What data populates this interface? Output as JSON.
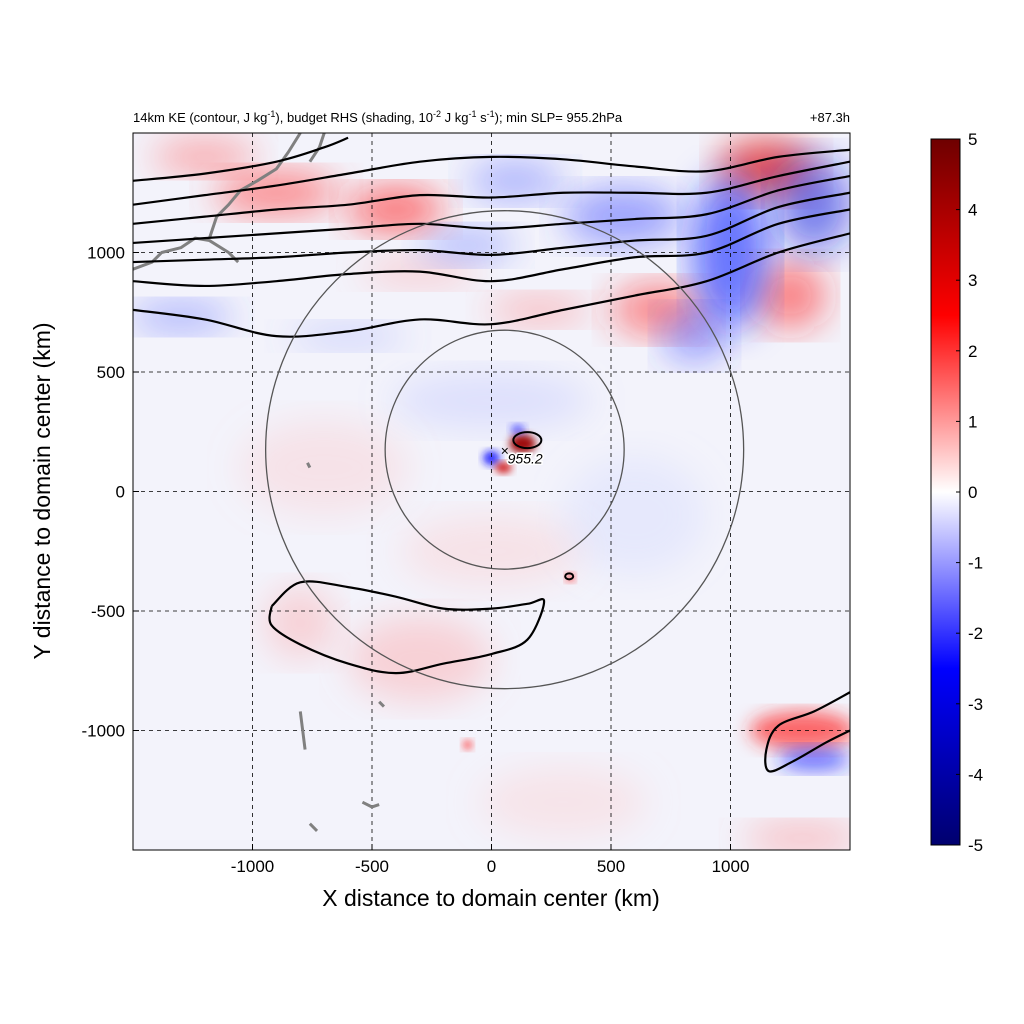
{
  "chart_data": {
    "type": "heatmap",
    "title_left_pre": "14km KE (contour, J kg",
    "title_left_sup1": "-1",
    "title_left_mid": "), budget RHS (shading, 10",
    "title_left_sup2": "-2",
    "title_left_mid2": " J kg",
    "title_left_sup3": "-1",
    "title_left_mid3": " s",
    "title_left_sup4": "-1",
    "title_left_post": "); min SLP= 955.2hPa",
    "title_right": "+87.3h",
    "xlabel": "X distance to domain center (km)",
    "ylabel": "Y distance to domain center (km)",
    "xlim": [
      -1500,
      1500
    ],
    "ylim": [
      -1500,
      1500
    ],
    "x_ticks": [
      -1000,
      -500,
      0,
      500,
      1000
    ],
    "y_ticks": [
      -1000,
      -500,
      0,
      500,
      1000
    ],
    "x_tick_labels": [
      "-1000",
      "-500",
      "0",
      "500",
      "1000"
    ],
    "y_tick_labels": [
      "-1000",
      "-500",
      "0",
      "500",
      "1000"
    ],
    "grid": "dashed",
    "colorbar": {
      "min": -5,
      "max": 5,
      "ticks": [
        5,
        4,
        3,
        2,
        1,
        0,
        -1,
        -2,
        -3,
        -4,
        -5
      ],
      "tick_labels": [
        "5",
        "4",
        "3",
        "2",
        "1",
        "0",
        "-1",
        "-2",
        "-3",
        "-4",
        "-5"
      ],
      "colors": [
        "#00006e",
        "#0000ff",
        "#ffffff",
        "#ff0000",
        "#6e0000"
      ]
    },
    "center": {
      "x": 55,
      "y": 175,
      "label": "955.2",
      "marker": "×"
    },
    "radius_rings_km": [
      500,
      1000
    ],
    "ke_contour_levels": [
      {
        "name": "upper band 1",
        "points": [
          [
            -1500,
            760
          ],
          [
            -1200,
            720
          ],
          [
            -900,
            650
          ],
          [
            -600,
            670
          ],
          [
            -300,
            720
          ],
          [
            0,
            700
          ],
          [
            300,
            760
          ],
          [
            600,
            820
          ],
          [
            900,
            880
          ],
          [
            1200,
            1000
          ],
          [
            1500,
            1080
          ]
        ]
      },
      {
        "name": "upper band 2",
        "points": [
          [
            -1500,
            880
          ],
          [
            -1200,
            860
          ],
          [
            -900,
            880
          ],
          [
            -600,
            910
          ],
          [
            -300,
            920
          ],
          [
            0,
            880
          ],
          [
            300,
            930
          ],
          [
            600,
            980
          ],
          [
            900,
            1000
          ],
          [
            1200,
            1120
          ],
          [
            1500,
            1180
          ]
        ]
      },
      {
        "name": "upper band 3",
        "points": [
          [
            -1500,
            960
          ],
          [
            -1200,
            970
          ],
          [
            -900,
            980
          ],
          [
            -600,
            1000
          ],
          [
            -300,
            1010
          ],
          [
            0,
            990
          ],
          [
            300,
            1020
          ],
          [
            600,
            1050
          ],
          [
            900,
            1070
          ],
          [
            1200,
            1190
          ],
          [
            1500,
            1250
          ]
        ]
      },
      {
        "name": "upper band 4",
        "points": [
          [
            -1500,
            1040
          ],
          [
            -1200,
            1060
          ],
          [
            -900,
            1080
          ],
          [
            -600,
            1100
          ],
          [
            -300,
            1120
          ],
          [
            0,
            1100
          ],
          [
            300,
            1120
          ],
          [
            600,
            1140
          ],
          [
            900,
            1160
          ],
          [
            1200,
            1260
          ],
          [
            1500,
            1320
          ]
        ]
      },
      {
        "name": "upper band 5",
        "points": [
          [
            -1500,
            1120
          ],
          [
            -1200,
            1150
          ],
          [
            -900,
            1180
          ],
          [
            -600,
            1200
          ],
          [
            -300,
            1240
          ],
          [
            0,
            1230
          ],
          [
            300,
            1250
          ],
          [
            600,
            1250
          ],
          [
            900,
            1250
          ],
          [
            1200,
            1320
          ],
          [
            1500,
            1380
          ]
        ]
      },
      {
        "name": "upper band 6",
        "points": [
          [
            -1500,
            1200
          ],
          [
            -1200,
            1240
          ],
          [
            -900,
            1280
          ],
          [
            -600,
            1330
          ],
          [
            -300,
            1380
          ],
          [
            0,
            1400
          ],
          [
            300,
            1390
          ],
          [
            600,
            1360
          ],
          [
            900,
            1340
          ],
          [
            1200,
            1400
          ],
          [
            1500,
            1430
          ]
        ]
      },
      {
        "name": "upper band 7",
        "points": [
          [
            -1500,
            1300
          ],
          [
            -1200,
            1330
          ],
          [
            -900,
            1380
          ],
          [
            -700,
            1440
          ],
          [
            -600,
            1480
          ]
        ]
      },
      {
        "name": "south lobe",
        "points": [
          [
            -920,
            -480
          ],
          [
            -800,
            -380
          ],
          [
            -600,
            -400
          ],
          [
            -400,
            -440
          ],
          [
            -200,
            -490
          ],
          [
            0,
            -490
          ],
          [
            150,
            -470
          ],
          [
            220,
            -460
          ],
          [
            150,
            -620
          ],
          [
            0,
            -680
          ],
          [
            -200,
            -720
          ],
          [
            -400,
            -760
          ],
          [
            -600,
            -720
          ],
          [
            -800,
            -640
          ],
          [
            -920,
            -560
          ],
          [
            -920,
            -480
          ]
        ]
      },
      {
        "name": "southeast band",
        "points": [
          [
            1500,
            -840
          ],
          [
            1350,
            -920
          ],
          [
            1200,
            -980
          ],
          [
            1150,
            -1080
          ],
          [
            1160,
            -1170
          ],
          [
            1260,
            -1130
          ],
          [
            1400,
            -1050
          ],
          [
            1500,
            -1000
          ]
        ]
      }
    ]
  }
}
